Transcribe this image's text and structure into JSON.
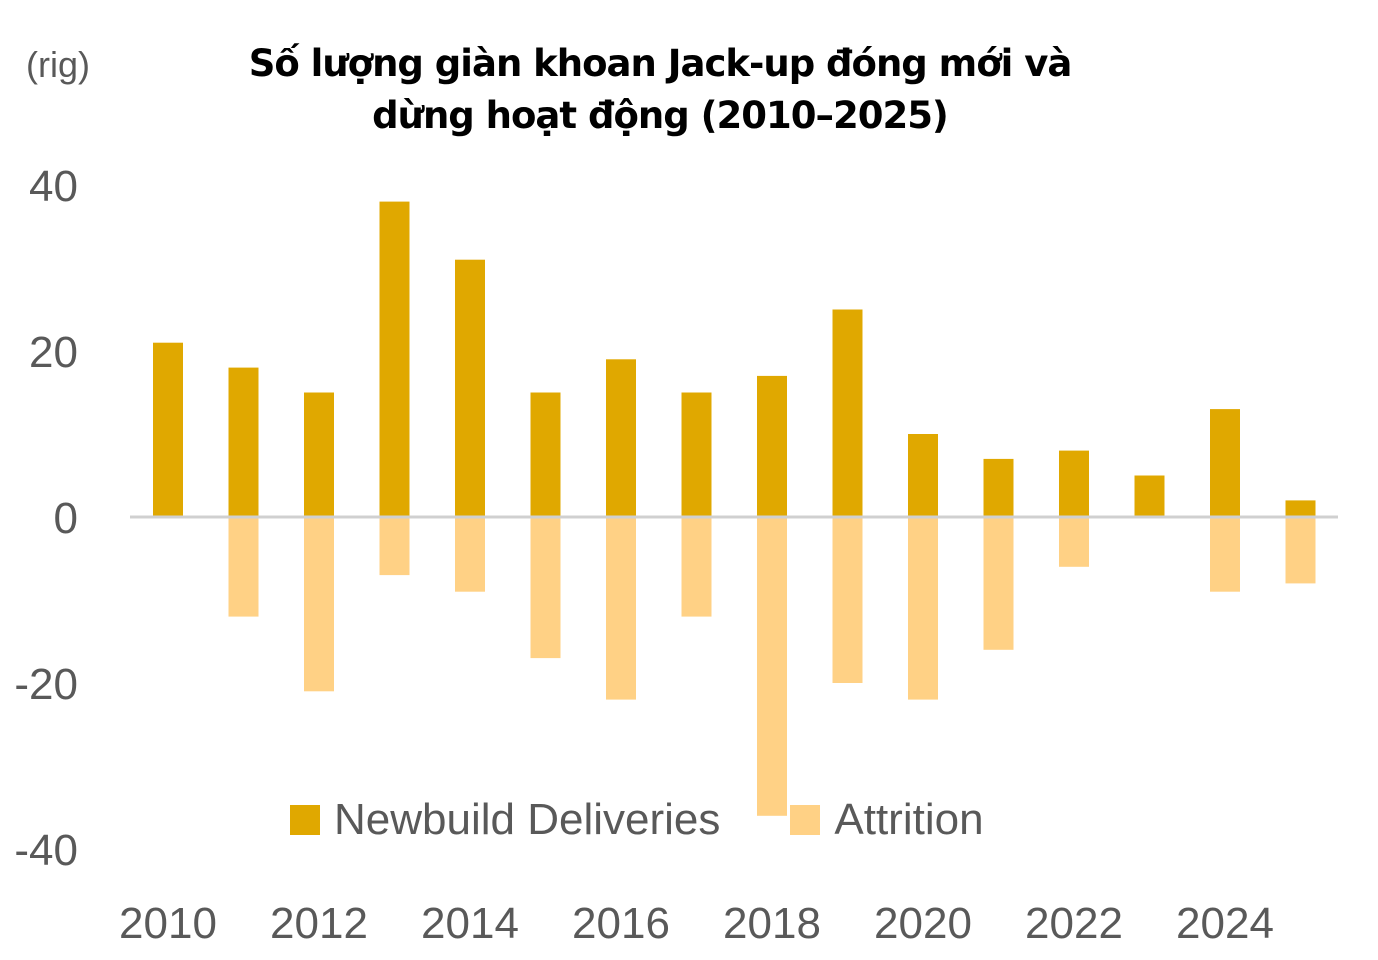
{
  "chart_data": {
    "type": "bar",
    "title": "Số lượng giàn khoan Jack-up đóng mới và dừng hoạt động (2010–2025)",
    "title_lines": [
      "Số lượng giàn khoan Jack-up đóng mới và",
      "dừng hoạt động (2010–2025)"
    ],
    "ylabel": "(rig)",
    "xlabel": "",
    "ylim": [
      -40,
      40
    ],
    "yticks": [
      40,
      20,
      0,
      -20,
      -40
    ],
    "ytick_labels": [
      "40",
      "20",
      "0",
      "-20",
      "-40"
    ],
    "categories": [
      "2010",
      "2011",
      "2012",
      "2013",
      "2014",
      "2015",
      "2016",
      "2017",
      "2018",
      "2019",
      "2020",
      "2021",
      "2022",
      "2023",
      "2024",
      "2025"
    ],
    "xtick_labels": [
      "2010",
      "2012",
      "2014",
      "2016",
      "2018",
      "2020",
      "2022",
      "2024"
    ],
    "series": [
      {
        "name": "Newbuild Deliveries",
        "color": "#E0A800",
        "values": [
          21,
          18,
          15,
          38,
          31,
          15,
          19,
          15,
          17,
          25,
          10,
          7,
          8,
          5,
          13,
          2
        ]
      },
      {
        "name": "Attrition",
        "color": "#FFD185",
        "values": [
          0,
          -12,
          -21,
          -7,
          -9,
          -17,
          -22,
          -12,
          -36,
          -20,
          -22,
          -16,
          -6,
          0,
          -9,
          -8
        ]
      }
    ],
    "legend_position": "bottom-center",
    "grid": false,
    "zero_line_color": "#D0D0D0"
  }
}
